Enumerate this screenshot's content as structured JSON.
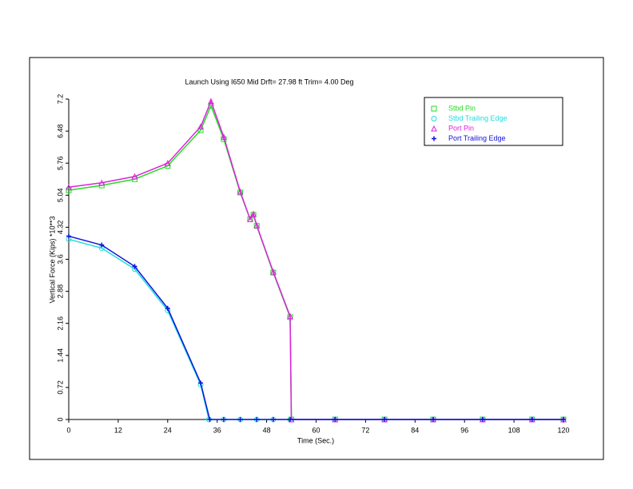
{
  "chart_data": {
    "type": "line",
    "title": "Launch Using I650 Mid Drft= 27.98 ft Trim= 4.00 Deg",
    "x_label": "Time (Sec.)",
    "y_label": "Vertical Force (Kips) *10**3",
    "xlim": [
      0,
      120
    ],
    "xticks": [
      0,
      12,
      24,
      36,
      48,
      60,
      72,
      84,
      96,
      108,
      120
    ],
    "ylim": [
      0,
      7.2
    ],
    "yticks": [
      0,
      0.72,
      1.44,
      2.16,
      2.88,
      3.6,
      4.32,
      5.04,
      5.76,
      6.48,
      7.2
    ],
    "legend": "upper right",
    "series": [
      {
        "name": "Stbd Pin",
        "color": "#22dd22",
        "marker": "square",
        "x": [
          0,
          8,
          16,
          24,
          32,
          34.5,
          37.6,
          41.6,
          44,
          44.8,
          45.6,
          49.6,
          53.7,
          54,
          64.6,
          76.6,
          88.4,
          100.4,
          112.4,
          120
        ],
        "values": [
          5.15,
          5.26,
          5.4,
          5.7,
          6.5,
          7.05,
          6.3,
          5.1,
          4.5,
          4.6,
          4.35,
          3.3,
          2.3,
          0,
          0,
          0,
          0,
          0,
          0,
          0
        ]
      },
      {
        "name": "Stbd Trailing Edge",
        "color": "#22dddd",
        "marker": "circle",
        "x": [
          0,
          8,
          16,
          24,
          32,
          34,
          37.6,
          41.6,
          45.6,
          49.6,
          53.7,
          64.6,
          76.6,
          88.4,
          100.4,
          112.4,
          120
        ],
        "values": [
          4.05,
          3.85,
          3.38,
          2.45,
          0.78,
          0,
          0,
          0,
          0,
          0,
          0,
          0,
          0,
          0,
          0,
          0,
          0
        ]
      },
      {
        "name": "Port Pin",
        "color": "#dd22dd",
        "marker": "triangle",
        "x": [
          0,
          8,
          16,
          24,
          32,
          34.5,
          37.6,
          41.6,
          44,
          44.8,
          45.6,
          49.6,
          53.7,
          54,
          64.6,
          76.6,
          88.4,
          100.4,
          112.4,
          120
        ],
        "values": [
          5.22,
          5.32,
          5.46,
          5.76,
          6.58,
          7.15,
          6.35,
          5.12,
          4.5,
          4.62,
          4.36,
          3.32,
          2.32,
          0,
          0,
          0,
          0,
          0,
          0,
          0
        ]
      },
      {
        "name": "Port Trailing Edge",
        "color": "#1111dd",
        "marker": "plus",
        "x": [
          0,
          8,
          16,
          24,
          32,
          34.2,
          37.6,
          41.6,
          45.6,
          49.6,
          53.7,
          64.6,
          76.6,
          88.4,
          100.4,
          112.4,
          120
        ],
        "values": [
          4.12,
          3.92,
          3.44,
          2.5,
          0.82,
          0,
          0,
          0,
          0,
          0,
          0,
          0,
          0,
          0,
          0,
          0,
          0
        ]
      }
    ]
  }
}
